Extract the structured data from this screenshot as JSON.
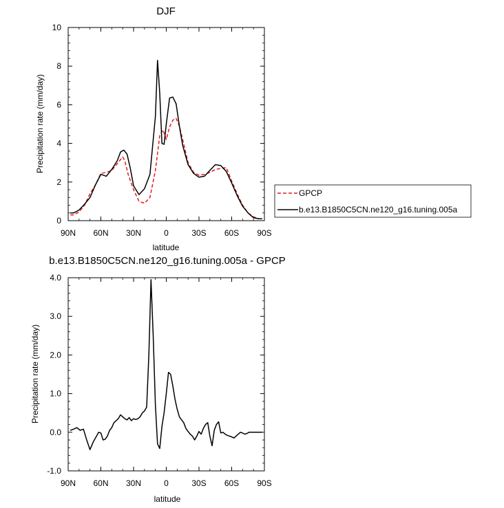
{
  "chart_data": [
    {
      "type": "line",
      "title": "DJF",
      "xlabel": "latitude",
      "ylabel": "Precipitation rate (mm/day)",
      "xlim": [
        -90,
        90
      ],
      "ylim": [
        0,
        10
      ],
      "xticks": [
        -90,
        -60,
        -30,
        0,
        30,
        60,
        90
      ],
      "xtick_labels": [
        "90N",
        "60N",
        "30N",
        "0",
        "30S",
        "60S",
        "90S"
      ],
      "yticks": [
        0,
        2,
        4,
        6,
        8,
        10
      ],
      "ytick_labels": [
        "0",
        "2",
        "4",
        "6",
        "8",
        "10"
      ],
      "grid": false,
      "legend_position": "right",
      "series": [
        {
          "name": "GPCP",
          "color": "#e31a1c",
          "dash": true,
          "x": [
            -88,
            -85,
            -80,
            -75,
            -70,
            -65,
            -60,
            -55,
            -50,
            -45,
            -40,
            -38,
            -35,
            -30,
            -25,
            -20,
            -15,
            -10,
            -6,
            -3,
            0,
            3,
            6,
            9,
            12,
            15,
            20,
            25,
            30,
            35,
            40,
            45,
            50,
            55,
            60,
            65,
            70,
            75,
            80,
            85,
            88
          ],
          "y": [
            0.3,
            0.3,
            0.45,
            0.8,
            1.4,
            1.85,
            2.45,
            2.5,
            2.6,
            2.95,
            3.3,
            3.1,
            2.4,
            1.6,
            1.0,
            0.9,
            1.2,
            2.6,
            4.4,
            4.7,
            4.2,
            4.85,
            5.2,
            5.3,
            4.9,
            4.2,
            3.0,
            2.5,
            2.35,
            2.4,
            2.5,
            2.65,
            2.7,
            2.75,
            2.05,
            1.4,
            0.8,
            0.4,
            0.2,
            0.1,
            0.1
          ]
        },
        {
          "name": "b.e13.B1850C5CN.ne120_g16.tuning.005a",
          "color": "#000000",
          "dash": false,
          "x": [
            -88,
            -85,
            -80,
            -75,
            -70,
            -65,
            -60,
            -55,
            -50,
            -45,
            -42,
            -39,
            -36,
            -33,
            -30,
            -25,
            -20,
            -15,
            -10,
            -8,
            -6,
            -4,
            -2,
            0,
            3,
            6,
            9,
            12,
            15,
            20,
            25,
            30,
            35,
            40,
            45,
            50,
            55,
            60,
            65,
            70,
            75,
            80,
            85,
            88
          ],
          "y": [
            0.4,
            0.4,
            0.55,
            0.85,
            1.2,
            1.85,
            2.4,
            2.3,
            2.65,
            3.1,
            3.55,
            3.65,
            3.45,
            2.7,
            1.8,
            1.35,
            1.65,
            2.4,
            5.4,
            8.3,
            6.6,
            4.0,
            3.95,
            5.0,
            6.35,
            6.4,
            6.05,
            4.9,
            3.9,
            2.9,
            2.45,
            2.25,
            2.3,
            2.6,
            2.9,
            2.85,
            2.55,
            1.95,
            1.3,
            0.75,
            0.4,
            0.15,
            0.1,
            0.1
          ]
        }
      ]
    },
    {
      "type": "line",
      "title": "b.e13.B1850C5CN.ne120_g16.tuning.005a - GPCP",
      "xlabel": "latitude",
      "ylabel": "Precipitation rate (mm/day)",
      "xlim": [
        -90,
        90
      ],
      "ylim": [
        -1,
        4
      ],
      "xticks": [
        -90,
        -60,
        -30,
        0,
        30,
        60,
        90
      ],
      "xtick_labels": [
        "90N",
        "60N",
        "30N",
        "0",
        "30S",
        "60S",
        "90S"
      ],
      "yticks": [
        -1,
        0,
        1,
        2,
        3,
        4
      ],
      "ytick_labels": [
        "-1.0",
        "0.0",
        "1.0",
        "2.0",
        "3.0",
        "4.0"
      ],
      "grid": false,
      "series": [
        {
          "color": "#000000",
          "dash": false,
          "x": [
            -88,
            -85,
            -82,
            -79,
            -76,
            -73,
            -70,
            -67,
            -64,
            -62,
            -60,
            -58,
            -56,
            -54,
            -52,
            -50,
            -48,
            -46,
            -44,
            -42,
            -40,
            -38,
            -36,
            -34,
            -32,
            -30,
            -28,
            -26,
            -24,
            -22,
            -20,
            -18,
            -16,
            -14,
            -12,
            -10,
            -8,
            -6,
            -4,
            -2,
            0,
            2,
            4,
            6,
            8,
            10,
            12,
            14,
            16,
            18,
            20,
            22,
            24,
            26,
            28,
            30,
            32,
            34,
            36,
            38,
            40,
            42,
            44,
            46,
            48,
            50,
            52,
            54,
            56,
            58,
            60,
            62,
            64,
            66,
            68,
            70,
            72,
            74,
            76,
            78,
            80,
            82,
            84,
            86,
            88
          ],
          "y": [
            0.05,
            0.08,
            0.12,
            0.05,
            0.08,
            -0.2,
            -0.45,
            -0.25,
            -0.1,
            0.0,
            -0.02,
            -0.2,
            -0.18,
            -0.1,
            0.05,
            0.12,
            0.25,
            0.3,
            0.35,
            0.45,
            0.4,
            0.35,
            0.32,
            0.38,
            0.3,
            0.35,
            0.33,
            0.35,
            0.4,
            0.5,
            0.55,
            0.65,
            2.0,
            3.95,
            2.5,
            0.7,
            -0.3,
            -0.42,
            0.15,
            0.5,
            1.0,
            1.55,
            1.5,
            1.2,
            0.85,
            0.6,
            0.4,
            0.32,
            0.25,
            0.1,
            0.02,
            -0.05,
            -0.1,
            -0.2,
            -0.1,
            0.02,
            -0.05,
            0.1,
            0.2,
            0.25,
            -0.1,
            -0.35,
            0.05,
            0.2,
            0.27,
            -0.02,
            0.0,
            -0.05,
            -0.08,
            -0.1,
            -0.12,
            -0.15,
            -0.1,
            -0.05,
            0.0,
            -0.02,
            -0.05,
            -0.03,
            0.0,
            0.0,
            0.0,
            0.0,
            0.0,
            0.0,
            0.0
          ]
        }
      ]
    }
  ]
}
